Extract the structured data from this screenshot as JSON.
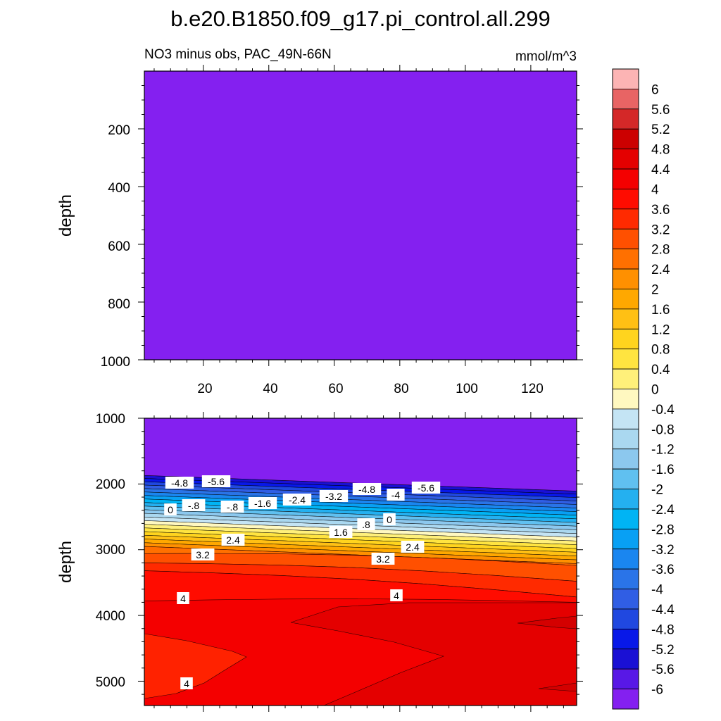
{
  "chart_data": {
    "type": "contour",
    "title": "b.e20.B1850.f09_g17.pi_control.all.299",
    "subtitle_left": "NO3 minus obs, PAC_49N-66N",
    "subtitle_right": "mmol/m^3",
    "xlabel": "",
    "ylabel": "depth",
    "xlim": [
      2,
      134
    ],
    "x_ticks": [
      "20",
      "40",
      "60",
      "80",
      "100",
      "120"
    ],
    "panels": [
      {
        "name": "upper",
        "ylim": [
          0,
          1000
        ],
        "y_ticks": [
          "200",
          "400",
          "600",
          "800",
          "1000"
        ],
        "fill_value": "-6 and below (uniform)",
        "fill_color": "#8420f0"
      },
      {
        "name": "lower",
        "ylim": [
          1000,
          5370
        ],
        "y_ticks": [
          "1000",
          "2000",
          "3000",
          "4000",
          "5000"
        ],
        "contour_labels": [
          "-4.8",
          "-5.6",
          "0",
          "-.8",
          "-.8",
          "-1.6",
          "-2.4",
          "-3.2",
          "-4.8",
          "-4",
          "-5.6",
          "0",
          ".8",
          "1.6",
          "2.4",
          "2.4",
          "3.2",
          "3.2",
          "4",
          "4",
          "4"
        ]
      }
    ],
    "colorbar": {
      "levels": [
        "6",
        "5.6",
        "5.2",
        "4.8",
        "4.4",
        "4",
        "3.6",
        "3.2",
        "2.8",
        "2.4",
        "2",
        "1.6",
        "1.2",
        "0.8",
        "0.4",
        "0",
        "-0.4",
        "-0.8",
        "-1.2",
        "-1.6",
        "-2",
        "-2.4",
        "-2.8",
        "-3.2",
        "-3.6",
        "-4",
        "-4.4",
        "-4.8",
        "-5.2",
        "-5.6",
        "-6"
      ],
      "colors": [
        "#fcb4b4",
        "#e86464",
        "#d42828",
        "#cc0000",
        "#e40000",
        "#f40000",
        "#ff0c00",
        "#ff2a00",
        "#ff5000",
        "#ff7000",
        "#ff9000",
        "#ffa800",
        "#ffc014",
        "#ffd41e",
        "#ffe440",
        "#fff07a",
        "#fff8c0",
        "#c4e4f4",
        "#aad8f0",
        "#8cc8ee",
        "#60c0f0",
        "#24b0f0",
        "#00b4f4",
        "#08a0f4",
        "#1a86f0",
        "#2a74e8",
        "#305ee4",
        "#2048e0",
        "#0818e8",
        "#1a10d4",
        "#5818e6",
        "#8420f0"
      ]
    }
  }
}
